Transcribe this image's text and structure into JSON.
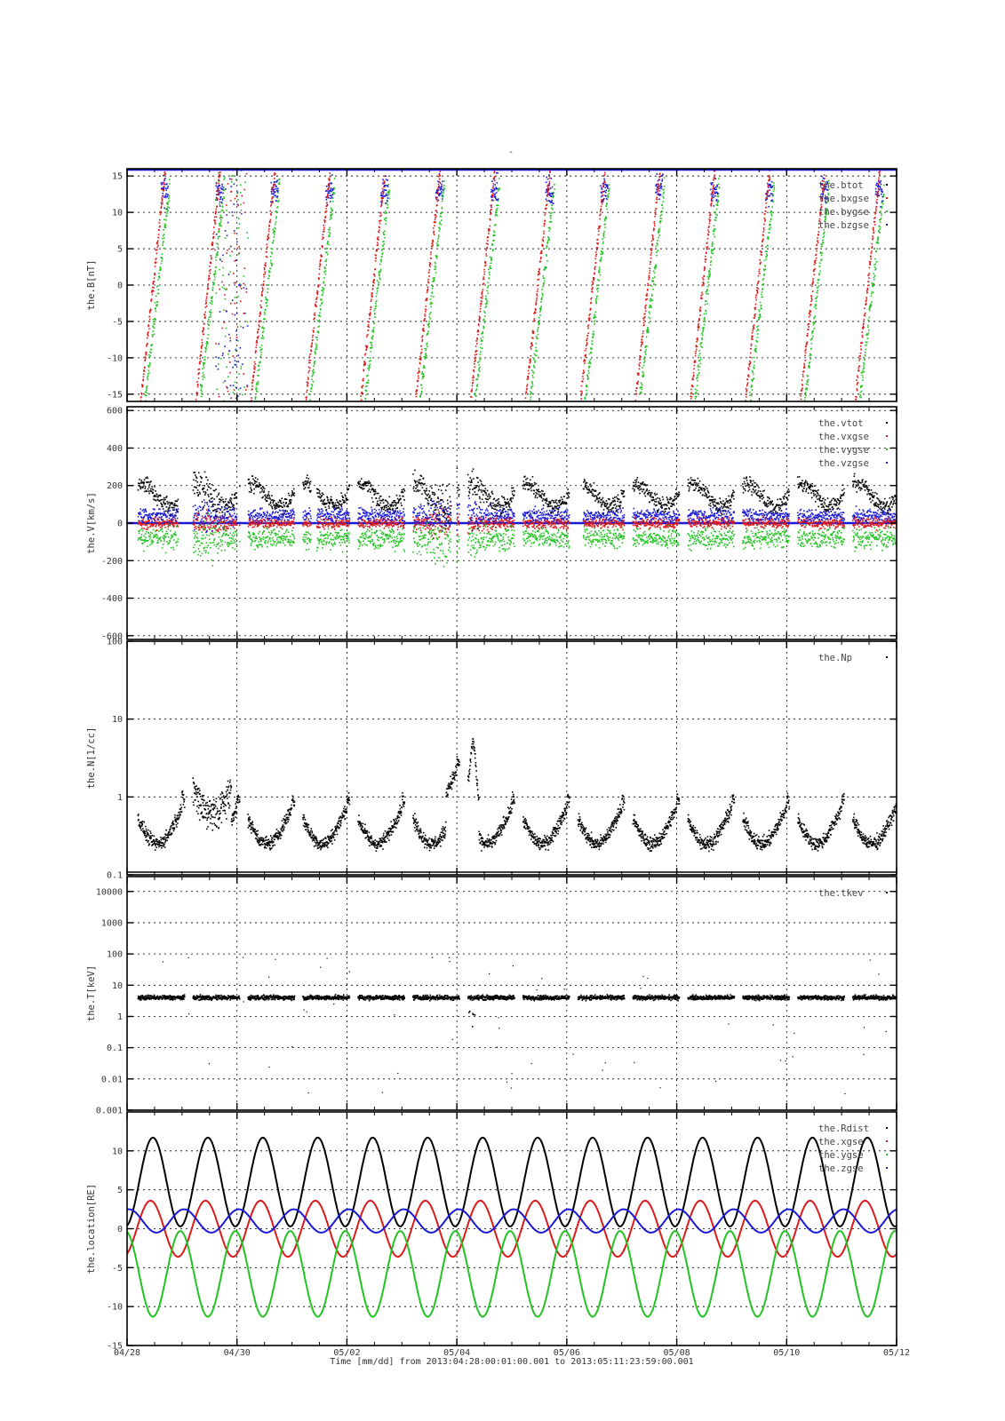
{
  "page_title": "-",
  "x_caption": "Time [mm/dd]  from 2013:04:28:00:01:00.001  to  2013:05:11:23:59:00.001",
  "x_tick_labels": [
    "04/28",
    "04/30",
    "05/02",
    "05/04",
    "05/06",
    "05/08",
    "05/10",
    "05/12"
  ],
  "colors": {
    "black": "#000000",
    "red": "#dd1a1a",
    "green": "#22c322",
    "blue": "#1a1ad6"
  },
  "chart_data": [
    {
      "type": "scatter",
      "ylabel": "the.B[nT]",
      "x_range_days": [
        0,
        14
      ],
      "ylim": [
        -16,
        16
      ],
      "yticks": [
        -15,
        -10,
        -5,
        0,
        5,
        10,
        15
      ],
      "grid": true,
      "legend_position": "top-right",
      "series": [
        {
          "name": "the.btot",
          "color": "black"
        },
        {
          "name": "the.bxgse",
          "color": "red"
        },
        {
          "name": "the.bygse",
          "color": "green"
        },
        {
          "name": "the.bzgse",
          "color": "blue"
        }
      ]
    },
    {
      "type": "scatter",
      "ylabel": "the.V[km/s]",
      "x_range_days": [
        0,
        14
      ],
      "ylim": [
        -620,
        620
      ],
      "yticks": [
        -600,
        -400,
        -200,
        0,
        200,
        400,
        600
      ],
      "grid": true,
      "legend_position": "top-right",
      "series": [
        {
          "name": "the.vtot",
          "color": "black"
        },
        {
          "name": "the.vxgse",
          "color": "red"
        },
        {
          "name": "the.vygse",
          "color": "green"
        },
        {
          "name": "the.vzgse",
          "color": "blue"
        }
      ]
    },
    {
      "type": "scatter",
      "ylabel": "the.N[1/cc]",
      "x_range_days": [
        0,
        14
      ],
      "yscale": "log",
      "ylim": [
        0.1,
        100
      ],
      "yticks": [
        0.1,
        1,
        10,
        100
      ],
      "ytick_labels": [
        "0.1",
        "1",
        "10",
        "100"
      ],
      "grid": true,
      "legend_position": "top-right",
      "series": [
        {
          "name": "the.Np",
          "color": "black"
        }
      ]
    },
    {
      "type": "scatter",
      "ylabel": "the.T[keV]",
      "x_range_days": [
        0,
        14
      ],
      "yscale": "log",
      "ylim": [
        0.001,
        30000
      ],
      "yticks": [
        0.001,
        0.01,
        0.1,
        1,
        10,
        100,
        1000,
        10000
      ],
      "ytick_labels": [
        "0.001",
        "0.01",
        "0.1",
        "1",
        "10",
        "100",
        "1000",
        "10000"
      ],
      "grid": true,
      "legend_position": "top-right",
      "series": [
        {
          "name": "the.tkev",
          "color": "black"
        }
      ]
    },
    {
      "type": "line",
      "ylabel": "the.location[RE]",
      "x_range_days": [
        0,
        14
      ],
      "ylim": [
        -15,
        15
      ],
      "yticks": [
        -15,
        -10,
        -5,
        0,
        5,
        10
      ],
      "grid": true,
      "legend_position": "top-right",
      "orbit_period_days": 1.0,
      "series": [
        {
          "name": "the.Rdist",
          "color": "black",
          "max": 11.7,
          "min": 0.3
        },
        {
          "name": "the.xgse",
          "color": "red",
          "amplitude": 3.6
        },
        {
          "name": "the.ygse",
          "color": "green",
          "max": 0,
          "min": -11.3
        },
        {
          "name": "the.zgse",
          "color": "blue",
          "max": 2.5,
          "min": -0.5
        }
      ]
    }
  ]
}
